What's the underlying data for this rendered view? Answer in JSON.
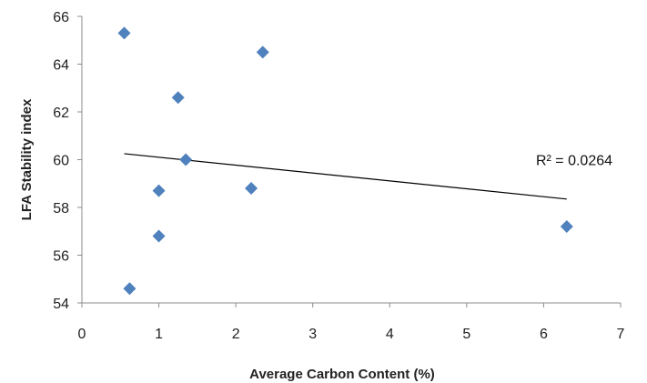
{
  "chart_data": {
    "type": "scatter",
    "title": "",
    "xlabel": "Average Carbon Content (%)",
    "ylabel": "LFA Stability index",
    "xlim": [
      0,
      7
    ],
    "ylim": [
      54,
      66
    ],
    "x_ticks": [
      0,
      1,
      2,
      3,
      4,
      5,
      6,
      7
    ],
    "y_ticks": [
      54,
      56,
      58,
      60,
      62,
      64,
      66
    ],
    "grid": false,
    "legend": "none",
    "marker": "diamond",
    "marker_color": "#4f81bd",
    "trendline_color": "#000000",
    "series": [
      {
        "x": [
          0.55,
          1.25,
          2.35,
          1.35,
          1.0,
          2.2,
          1.0,
          0.62,
          6.3
        ],
        "y": [
          65.3,
          62.6,
          64.5,
          60.0,
          58.7,
          58.8,
          56.8,
          54.6,
          57.2
        ]
      }
    ],
    "trendline": {
      "type": "linear",
      "x": [
        0.55,
        6.3
      ],
      "y": [
        60.25,
        58.35
      ]
    },
    "annotations": [
      {
        "text": "R² = 0.0264",
        "x": 5.9,
        "y": 60.0
      }
    ]
  }
}
